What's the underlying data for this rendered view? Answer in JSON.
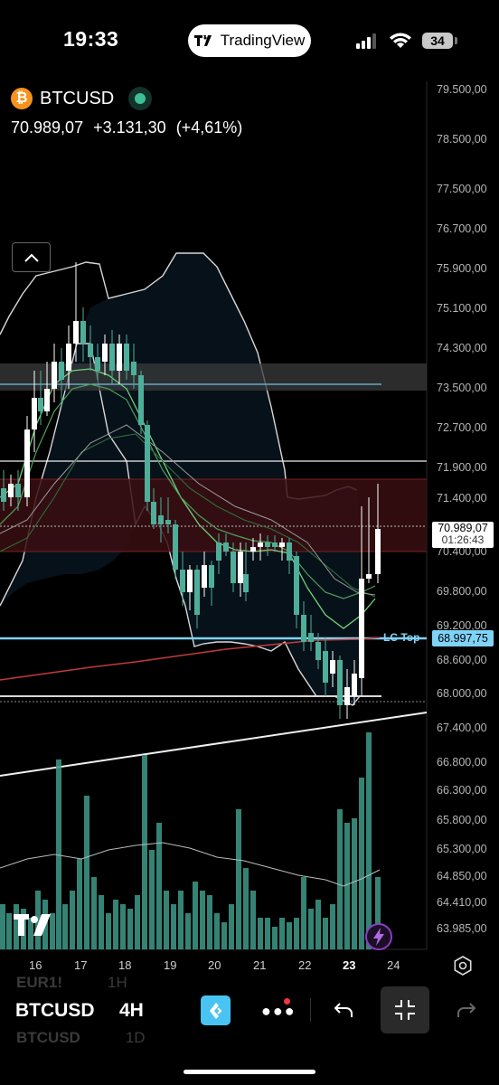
{
  "status_bar": {
    "time": "19:33",
    "app_pill": "TradingView",
    "battery": "34"
  },
  "header": {
    "symbol": "BTCUSD",
    "last_price": "70.989,07",
    "change": "+3.131,30",
    "change_pct": "(+4,61%)"
  },
  "price_axis": [
    "79.500,00",
    "78.500,00",
    "77.500,00",
    "76.700,00",
    "75.900,00",
    "75.100,00",
    "74.300,00",
    "73.500,00",
    "72.700,00",
    "71.900,00",
    "71.400,00",
    "70.400,00",
    "69.800,00",
    "69.200,00",
    "68.600,00",
    "68.000,00",
    "67.400,00",
    "66.800,00",
    "66.300,00",
    "65.800,00",
    "65.300,00",
    "64.850,00",
    "64.410,00",
    "63.985,00"
  ],
  "price_tag": {
    "price": "70.989,07",
    "countdown": "01:26:43"
  },
  "lc_line": {
    "label": "LC Top",
    "value": "68.997,75"
  },
  "date_axis": [
    "16",
    "17",
    "18",
    "19",
    "20",
    "21",
    "22",
    "23",
    "24"
  ],
  "bottom_bar": {
    "symbol": "BTCUSD",
    "timeframe": "4H",
    "ghost_prev_symbol": "EUR1!",
    "ghost_prev_tf": "1H",
    "ghost_next_symbol": "BTCUSD",
    "ghost_next_tf": "1D"
  },
  "colors": {
    "up_candle": "#ffffff",
    "down_candle": "#4fae99",
    "volume": "#3e9a8a",
    "bollinger": "#d0d0d0",
    "resistance_zone": "#3a0e12",
    "lc_top": "#7fd3f7",
    "red_ma": "#c23a3a"
  },
  "icons": {
    "logo": "tradingview-logo",
    "lightning": "lightning-icon",
    "settings": "settings-icon"
  }
}
